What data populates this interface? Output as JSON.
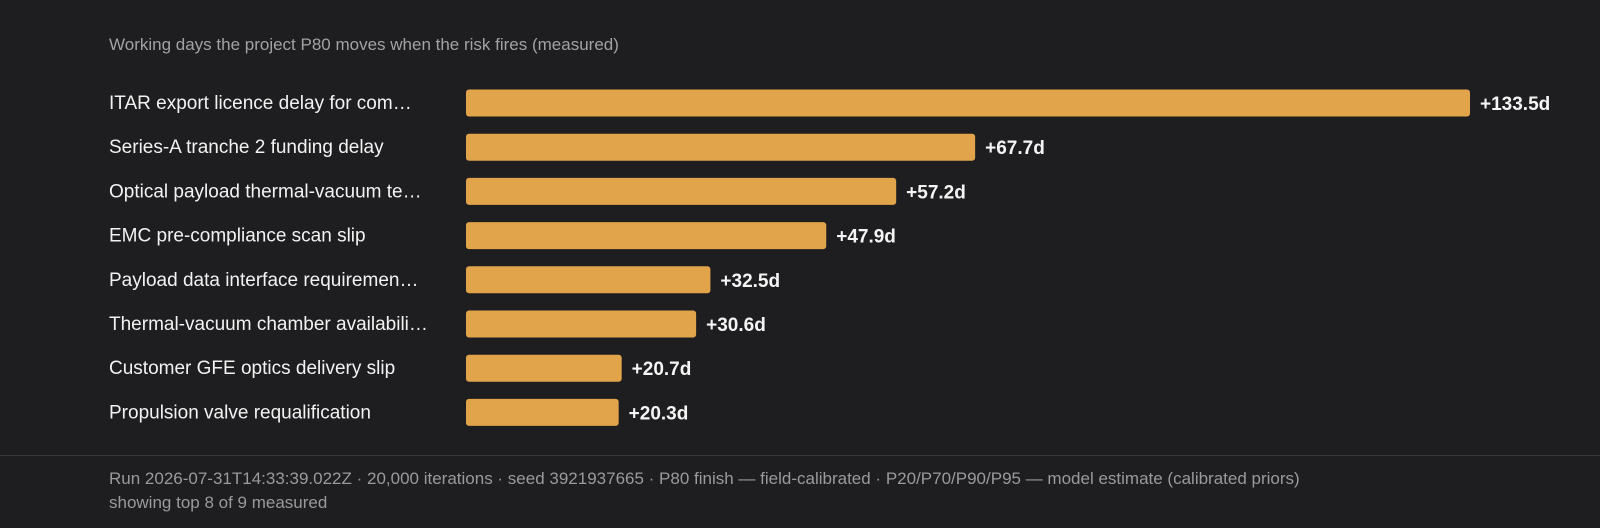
{
  "chart_data": {
    "type": "bar",
    "orientation": "horizontal",
    "subtitle": "Working days the project P80 moves when the risk fires (measured)",
    "categories": [
      "ITAR export licence delay for com…",
      "Series-A tranche 2 funding delay",
      "Optical payload thermal-vacuum te…",
      "EMC pre-compliance scan slip",
      "Payload data interface requiremen…",
      "Thermal-vacuum chamber availabili…",
      "Customer GFE optics delivery slip",
      "Propulsion valve requalification"
    ],
    "values": [
      133.5,
      67.7,
      57.2,
      47.9,
      32.5,
      30.6,
      20.7,
      20.3
    ],
    "value_labels": [
      "+133.5d",
      "+67.7d",
      "+57.2d",
      "+47.9d",
      "+32.5d",
      "+30.6d",
      "+20.7d",
      "+20.3d"
    ],
    "bar_color": "#e1a44a",
    "xlim": [
      0,
      133.5
    ],
    "grid": false,
    "legend": "none"
  },
  "footer": {
    "run_info": "Run 2026-07-31T14:33:39.022Z · 20,000 iterations · seed 3921937665 · P80 finish — field-calibrated · P20/P70/P90/P95 — model estimate (calibrated priors)",
    "showing": "showing top 8 of 9 measured"
  }
}
